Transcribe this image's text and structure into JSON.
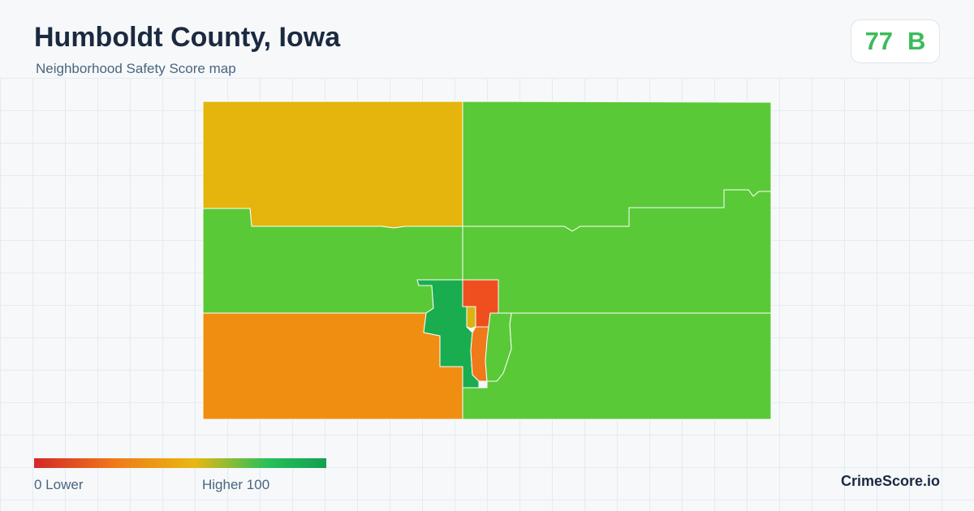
{
  "header": {
    "title": "Humboldt County, Iowa",
    "subtitle": "Neighborhood Safety Score map"
  },
  "score": {
    "value": "77",
    "grade": "B",
    "color": "#3dbb5a"
  },
  "map": {
    "regions": [
      {
        "id": "nw",
        "color": "#e5b50d"
      },
      {
        "id": "ne",
        "color": "#5ac937"
      },
      {
        "id": "w-mid",
        "color": "#5ac937"
      },
      {
        "id": "e-mid",
        "color": "#5ac937"
      },
      {
        "id": "sw",
        "color": "#f08e12"
      },
      {
        "id": "se",
        "color": "#5ac937"
      },
      {
        "id": "city-west",
        "color": "#1aad50"
      },
      {
        "id": "city-center-red",
        "color": "#ef4f1e"
      },
      {
        "id": "city-small-yellow",
        "color": "#d9b412"
      },
      {
        "id": "city-center-orange",
        "color": "#f07a1a"
      },
      {
        "id": "city-east",
        "color": "#5ac937"
      }
    ]
  },
  "legend": {
    "low_label": "0  Lower",
    "high_label": "Higher  100",
    "colors": [
      "#d32727",
      "#f07a1a",
      "#e8b812",
      "#26c05a",
      "#12a050"
    ]
  },
  "footer": {
    "brand": "CrimeScore.io"
  }
}
